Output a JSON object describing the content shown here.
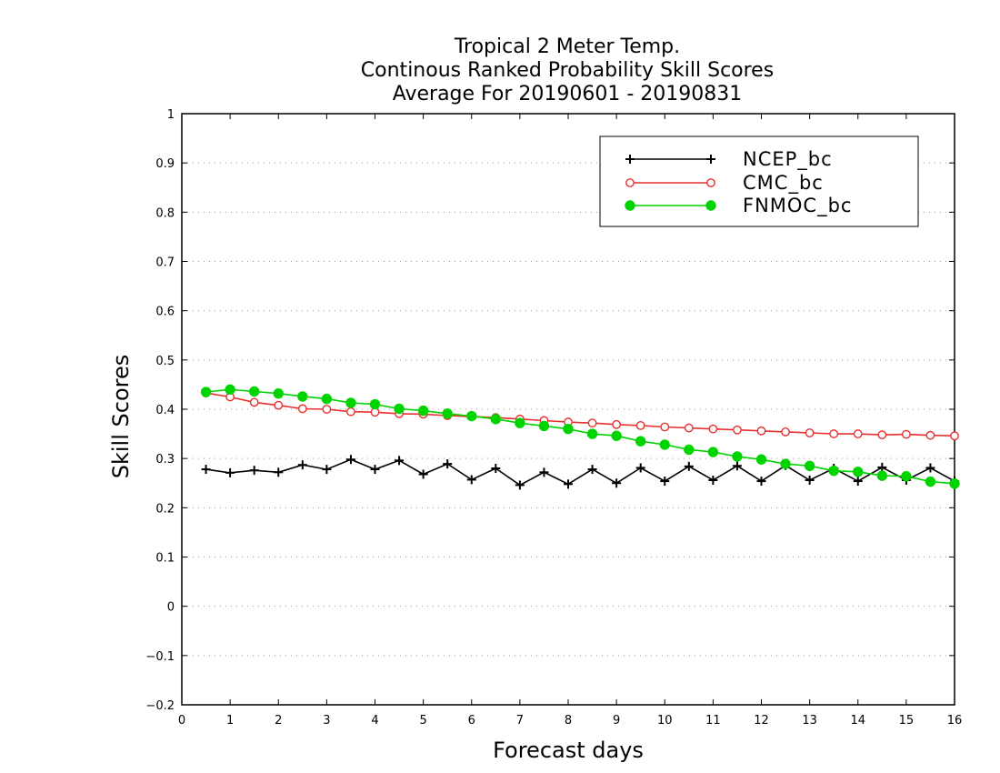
{
  "chart_data": {
    "type": "line",
    "title_lines": [
      "Tropical 2 Meter Temp.",
      "Continous Ranked Probability Skill Scores",
      "Average For 20190601 - 20190831"
    ],
    "xlabel": "Forecast days",
    "ylabel": "Skill Scores",
    "xlim": [
      0,
      16
    ],
    "ylim": [
      -0.2,
      1
    ],
    "x_ticks": [
      "0",
      "1",
      "2",
      "3",
      "4",
      "5",
      "6",
      "7",
      "8",
      "9",
      "10",
      "11",
      "12",
      "13",
      "14",
      "15",
      "16"
    ],
    "y_ticks": [
      "1",
      "0.9",
      "0.8",
      "0.7",
      "0.6",
      "0.5",
      "0.4",
      "0.3",
      "0.2",
      "0.1",
      "0",
      "-0.1",
      "-0.2"
    ],
    "grid": "horizontal dotted",
    "legend_position": "top-right",
    "x": [
      0.5,
      1,
      1.5,
      2,
      2.5,
      3,
      3.5,
      4,
      4.5,
      5,
      5.5,
      6,
      6.5,
      7,
      7.5,
      8,
      8.5,
      9,
      9.5,
      10,
      10.5,
      11,
      11.5,
      12,
      12.5,
      13,
      13.5,
      14,
      14.5,
      15,
      15.5,
      16
    ],
    "series": [
      {
        "name": "NCEP_bc",
        "color": "#000000",
        "marker": "plus",
        "values": [
          0.278,
          0.271,
          0.276,
          0.272,
          0.287,
          0.278,
          0.298,
          0.278,
          0.296,
          0.268,
          0.289,
          0.257,
          0.28,
          0.246,
          0.272,
          0.248,
          0.278,
          0.25,
          0.281,
          0.254,
          0.284,
          0.256,
          0.285,
          0.254,
          0.286,
          0.256,
          0.28,
          0.254,
          0.282,
          0.256,
          0.281,
          0.254
        ]
      },
      {
        "name": "CMC_bc",
        "color": "#e83030",
        "marker": "open-circle",
        "values": [
          0.433,
          0.425,
          0.414,
          0.408,
          0.401,
          0.4,
          0.395,
          0.394,
          0.391,
          0.39,
          0.387,
          0.385,
          0.383,
          0.38,
          0.377,
          0.374,
          0.372,
          0.369,
          0.367,
          0.364,
          0.362,
          0.36,
          0.358,
          0.356,
          0.354,
          0.352,
          0.35,
          0.35,
          0.348,
          0.349,
          0.347,
          0.346
        ]
      },
      {
        "name": "FNMOC_bc",
        "color": "#00d400",
        "marker": "filled-circle",
        "values": [
          0.435,
          0.44,
          0.436,
          0.432,
          0.426,
          0.421,
          0.413,
          0.41,
          0.401,
          0.397,
          0.391,
          0.386,
          0.38,
          0.372,
          0.366,
          0.36,
          0.35,
          0.346,
          0.335,
          0.328,
          0.318,
          0.313,
          0.304,
          0.298,
          0.289,
          0.285,
          0.275,
          0.273,
          0.265,
          0.264,
          0.253,
          0.249
        ]
      }
    ]
  }
}
